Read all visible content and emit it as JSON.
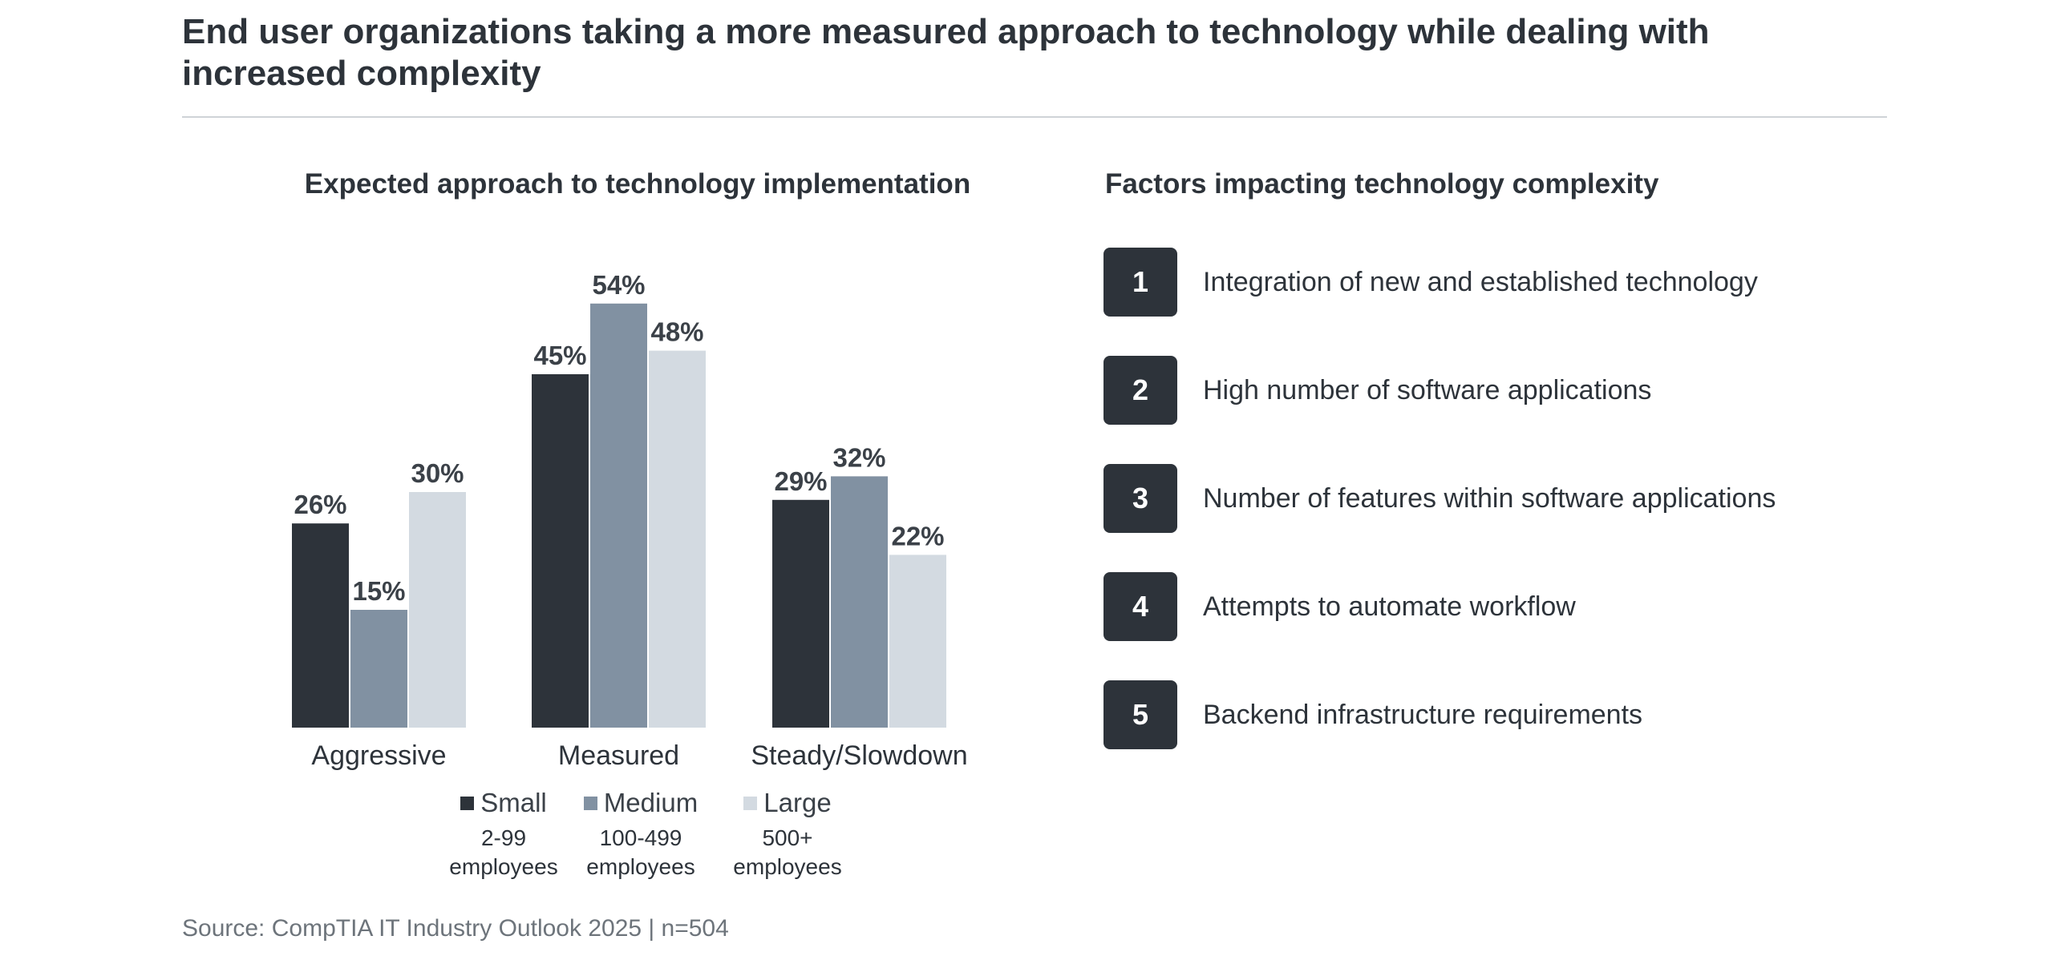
{
  "page": {
    "title": "End user organizations taking a more measured approach to technology while dealing with increased complexity",
    "source": "Source: CompTIA IT Industry Outlook 2025 | n=504"
  },
  "chart_data": {
    "type": "bar",
    "title": "Expected approach to technology implementation",
    "categories": [
      "Aggressive",
      "Measured",
      "Steady/Slowdown"
    ],
    "series": [
      {
        "name": "Small",
        "sub": [
          "2-99",
          "employees"
        ],
        "color": "#2d333a",
        "values": [
          26,
          45,
          29
        ]
      },
      {
        "name": "Medium",
        "sub": [
          "100-499",
          "employees"
        ],
        "color": "#8191a2",
        "values": [
          15,
          54,
          32
        ]
      },
      {
        "name": "Large",
        "sub": [
          "500+",
          "employees"
        ],
        "color": "#d3dae1",
        "values": [
          30,
          48,
          22
        ]
      }
    ],
    "value_suffix": "%",
    "ylim": [
      0,
      60
    ],
    "grid": false,
    "legend_position": "bottom"
  },
  "factors": {
    "title": "Factors impacting technology complexity",
    "items": [
      {
        "number": "1",
        "label": "Integration of new and established technology"
      },
      {
        "number": "2",
        "label": "High number of software applications"
      },
      {
        "number": "3",
        "label": "Number of features within software applications"
      },
      {
        "number": "4",
        "label": "Attempts to automate workflow"
      },
      {
        "number": "5",
        "label": "Backend infrastructure requirements"
      }
    ]
  }
}
